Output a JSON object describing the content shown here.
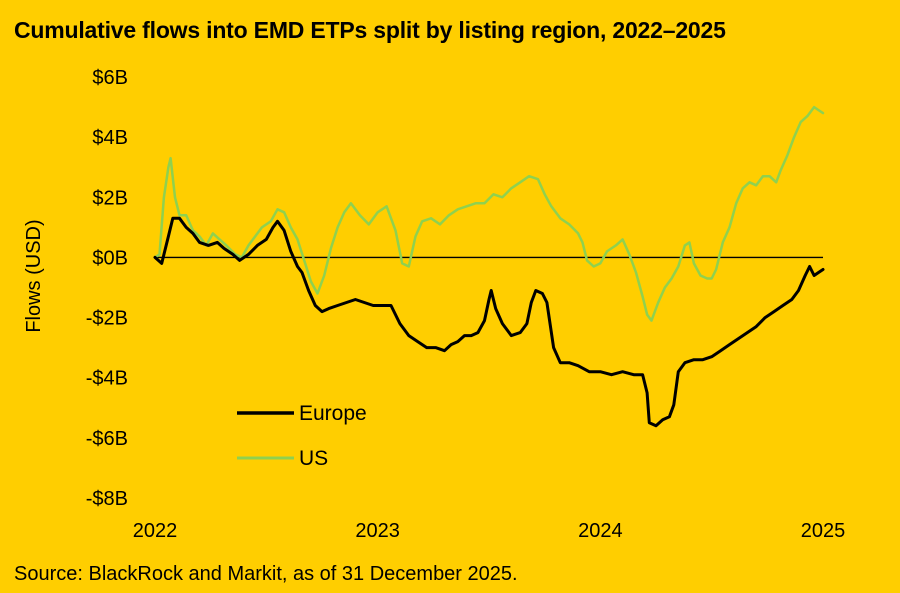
{
  "title": "Cumulative flows into EMD ETPs split by listing region, 2022–2025",
  "source": "Source: BlackRock and Markit, as of 31 December 2025.",
  "chart_data": {
    "type": "line",
    "title": "Cumulative flows into EMD ETPs split by listing region, 2022–2025",
    "xlabel": "",
    "ylabel": "Flows (USD)",
    "xlim": [
      2022.0,
      2025.0
    ],
    "ylim": [
      -8,
      6
    ],
    "zero_line": true,
    "x_ticks": [
      {
        "value": 2022,
        "label": "2022"
      },
      {
        "value": 2023,
        "label": "2023"
      },
      {
        "value": 2024,
        "label": "2024"
      },
      {
        "value": 2025,
        "label": "2025"
      }
    ],
    "y_ticks": [
      {
        "value": 6,
        "label": "$6B"
      },
      {
        "value": 4,
        "label": "$4B"
      },
      {
        "value": 2,
        "label": "$2B"
      },
      {
        "value": 0,
        "label": "$0B"
      },
      {
        "value": -2,
        "label": "-$2B"
      },
      {
        "value": -4,
        "label": "-$4B"
      },
      {
        "value": -6,
        "label": "-$6B"
      },
      {
        "value": -8,
        "label": "-$8B"
      }
    ],
    "legend_position": "bottom-left",
    "series": [
      {
        "name": "Europe",
        "color": "#000000",
        "points": [
          [
            2022.0,
            0.0
          ],
          [
            2022.03,
            -0.2
          ],
          [
            2022.06,
            0.7
          ],
          [
            2022.08,
            1.3
          ],
          [
            2022.11,
            1.3
          ],
          [
            2022.14,
            1.0
          ],
          [
            2022.17,
            0.8
          ],
          [
            2022.2,
            0.5
          ],
          [
            2022.24,
            0.4
          ],
          [
            2022.28,
            0.5
          ],
          [
            2022.31,
            0.3
          ],
          [
            2022.35,
            0.1
          ],
          [
            2022.38,
            -0.1
          ],
          [
            2022.42,
            0.1
          ],
          [
            2022.46,
            0.4
          ],
          [
            2022.5,
            0.6
          ],
          [
            2022.53,
            1.0
          ],
          [
            2022.55,
            1.2
          ],
          [
            2022.58,
            0.9
          ],
          [
            2022.61,
            0.2
          ],
          [
            2022.64,
            -0.3
          ],
          [
            2022.66,
            -0.5
          ],
          [
            2022.69,
            -1.1
          ],
          [
            2022.72,
            -1.6
          ],
          [
            2022.75,
            -1.8
          ],
          [
            2022.78,
            -1.7
          ],
          [
            2022.82,
            -1.6
          ],
          [
            2022.86,
            -1.5
          ],
          [
            2022.9,
            -1.4
          ],
          [
            2022.94,
            -1.5
          ],
          [
            2022.98,
            -1.6
          ],
          [
            2023.02,
            -1.6
          ],
          [
            2023.06,
            -1.6
          ],
          [
            2023.1,
            -2.2
          ],
          [
            2023.14,
            -2.6
          ],
          [
            2023.18,
            -2.8
          ],
          [
            2023.22,
            -3.0
          ],
          [
            2023.26,
            -3.0
          ],
          [
            2023.3,
            -3.1
          ],
          [
            2023.33,
            -2.9
          ],
          [
            2023.36,
            -2.8
          ],
          [
            2023.39,
            -2.6
          ],
          [
            2023.42,
            -2.6
          ],
          [
            2023.45,
            -2.5
          ],
          [
            2023.48,
            -2.1
          ],
          [
            2023.5,
            -1.4
          ],
          [
            2023.51,
            -1.1
          ],
          [
            2023.53,
            -1.7
          ],
          [
            2023.56,
            -2.2
          ],
          [
            2023.6,
            -2.6
          ],
          [
            2023.64,
            -2.5
          ],
          [
            2023.67,
            -2.2
          ],
          [
            2023.69,
            -1.5
          ],
          [
            2023.71,
            -1.1
          ],
          [
            2023.74,
            -1.2
          ],
          [
            2023.76,
            -1.5
          ],
          [
            2023.79,
            -3.0
          ],
          [
            2023.82,
            -3.5
          ],
          [
            2023.86,
            -3.5
          ],
          [
            2023.9,
            -3.6
          ],
          [
            2023.95,
            -3.8
          ],
          [
            2024.0,
            -3.8
          ],
          [
            2024.05,
            -3.9
          ],
          [
            2024.1,
            -3.8
          ],
          [
            2024.15,
            -3.9
          ],
          [
            2024.19,
            -3.9
          ],
          [
            2024.21,
            -4.5
          ],
          [
            2024.22,
            -5.5
          ],
          [
            2024.25,
            -5.6
          ],
          [
            2024.28,
            -5.4
          ],
          [
            2024.31,
            -5.3
          ],
          [
            2024.33,
            -4.9
          ],
          [
            2024.35,
            -3.8
          ],
          [
            2024.38,
            -3.5
          ],
          [
            2024.42,
            -3.4
          ],
          [
            2024.46,
            -3.4
          ],
          [
            2024.5,
            -3.3
          ],
          [
            2024.54,
            -3.1
          ],
          [
            2024.58,
            -2.9
          ],
          [
            2024.62,
            -2.7
          ],
          [
            2024.66,
            -2.5
          ],
          [
            2024.7,
            -2.3
          ],
          [
            2024.74,
            -2.0
          ],
          [
            2024.78,
            -1.8
          ],
          [
            2024.82,
            -1.6
          ],
          [
            2024.86,
            -1.4
          ],
          [
            2024.89,
            -1.1
          ],
          [
            2024.92,
            -0.6
          ],
          [
            2024.94,
            -0.3
          ],
          [
            2024.96,
            -0.6
          ],
          [
            2024.98,
            -0.5
          ],
          [
            2025.0,
            -0.4
          ]
        ]
      },
      {
        "name": "US",
        "color": "#8FD14F",
        "points": [
          [
            2022.0,
            0.0
          ],
          [
            2022.02,
            0.1
          ],
          [
            2022.04,
            2.0
          ],
          [
            2022.06,
            3.0
          ],
          [
            2022.07,
            3.3
          ],
          [
            2022.09,
            2.0
          ],
          [
            2022.11,
            1.4
          ],
          [
            2022.14,
            1.4
          ],
          [
            2022.17,
            0.9
          ],
          [
            2022.2,
            0.7
          ],
          [
            2022.23,
            0.4
          ],
          [
            2022.26,
            0.8
          ],
          [
            2022.29,
            0.6
          ],
          [
            2022.32,
            0.4
          ],
          [
            2022.36,
            0.1
          ],
          [
            2022.39,
            0.0
          ],
          [
            2022.42,
            0.4
          ],
          [
            2022.45,
            0.7
          ],
          [
            2022.48,
            1.0
          ],
          [
            2022.52,
            1.2
          ],
          [
            2022.55,
            1.6
          ],
          [
            2022.58,
            1.5
          ],
          [
            2022.61,
            1.0
          ],
          [
            2022.64,
            0.6
          ],
          [
            2022.67,
            -0.1
          ],
          [
            2022.7,
            -0.8
          ],
          [
            2022.73,
            -1.2
          ],
          [
            2022.76,
            -0.6
          ],
          [
            2022.79,
            0.3
          ],
          [
            2022.82,
            1.0
          ],
          [
            2022.85,
            1.5
          ],
          [
            2022.88,
            1.8
          ],
          [
            2022.92,
            1.4
          ],
          [
            2022.96,
            1.1
          ],
          [
            2023.0,
            1.5
          ],
          [
            2023.04,
            1.7
          ],
          [
            2023.08,
            0.9
          ],
          [
            2023.11,
            -0.2
          ],
          [
            2023.14,
            -0.3
          ],
          [
            2023.17,
            0.7
          ],
          [
            2023.2,
            1.2
          ],
          [
            2023.24,
            1.3
          ],
          [
            2023.28,
            1.1
          ],
          [
            2023.32,
            1.4
          ],
          [
            2023.36,
            1.6
          ],
          [
            2023.4,
            1.7
          ],
          [
            2023.44,
            1.8
          ],
          [
            2023.48,
            1.8
          ],
          [
            2023.52,
            2.1
          ],
          [
            2023.56,
            2.0
          ],
          [
            2023.6,
            2.3
          ],
          [
            2023.64,
            2.5
          ],
          [
            2023.68,
            2.7
          ],
          [
            2023.72,
            2.6
          ],
          [
            2023.75,
            2.1
          ],
          [
            2023.78,
            1.7
          ],
          [
            2023.82,
            1.3
          ],
          [
            2023.86,
            1.1
          ],
          [
            2023.9,
            0.8
          ],
          [
            2023.92,
            0.5
          ],
          [
            2023.94,
            -0.1
          ],
          [
            2023.97,
            -0.3
          ],
          [
            2024.0,
            -0.2
          ],
          [
            2024.03,
            0.2
          ],
          [
            2024.07,
            0.4
          ],
          [
            2024.1,
            0.6
          ],
          [
            2024.13,
            0.1
          ],
          [
            2024.16,
            -0.5
          ],
          [
            2024.19,
            -1.3
          ],
          [
            2024.21,
            -1.9
          ],
          [
            2024.23,
            -2.1
          ],
          [
            2024.26,
            -1.5
          ],
          [
            2024.29,
            -1.0
          ],
          [
            2024.32,
            -0.7
          ],
          [
            2024.35,
            -0.3
          ],
          [
            2024.38,
            0.4
          ],
          [
            2024.4,
            0.5
          ],
          [
            2024.42,
            -0.2
          ],
          [
            2024.45,
            -0.6
          ],
          [
            2024.48,
            -0.7
          ],
          [
            2024.5,
            -0.7
          ],
          [
            2024.52,
            -0.4
          ],
          [
            2024.55,
            0.5
          ],
          [
            2024.58,
            1.0
          ],
          [
            2024.61,
            1.8
          ],
          [
            2024.64,
            2.3
          ],
          [
            2024.67,
            2.5
          ],
          [
            2024.7,
            2.4
          ],
          [
            2024.73,
            2.7
          ],
          [
            2024.76,
            2.7
          ],
          [
            2024.79,
            2.5
          ],
          [
            2024.81,
            2.9
          ],
          [
            2024.84,
            3.4
          ],
          [
            2024.87,
            4.0
          ],
          [
            2024.9,
            4.5
          ],
          [
            2024.93,
            4.7
          ],
          [
            2024.96,
            5.0
          ],
          [
            2024.98,
            4.9
          ],
          [
            2025.0,
            4.8
          ]
        ]
      }
    ]
  }
}
